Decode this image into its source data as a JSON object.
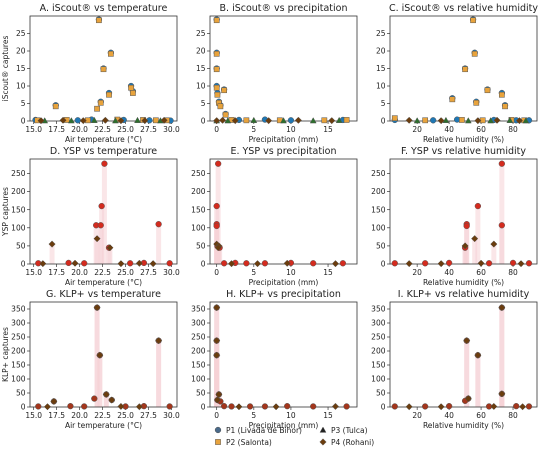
{
  "colors": {
    "P1": "#1f77b4",
    "P2": "#e8a33c",
    "P3": "#2d6f2d",
    "P4": "#6b3d0e",
    "YSP": "#d42b1e",
    "KLP": "#7a2a12",
    "shade": "#f6d2d6"
  },
  "legend": {
    "items": [
      {
        "label": "P1 (Livada de Bihor)",
        "marker": "circle",
        "color": "#4a6a8a"
      },
      {
        "label": "P2 (Salonta)",
        "marker": "square",
        "color": "#e8a33c"
      },
      {
        "label": "P3 (Tulca)",
        "marker": "triangle",
        "color": "#222222"
      },
      {
        "label": "P4 (Rohani)",
        "marker": "diamond",
        "color": "#6b3d0e"
      }
    ]
  },
  "chart_data": [
    {
      "type": "scatter",
      "title": "A. iScout® vs temperature",
      "xlabel": "Air temperature (°C)",
      "ylabel": "iScout® captures",
      "xlim": [
        14.6,
        30.6
      ],
      "ylim": [
        0,
        30
      ],
      "xticks": [
        "15.0",
        "17.5",
        "20.0",
        "22.5",
        "25.0",
        "27.5",
        "30.0"
      ],
      "xtick_values": [
        15,
        17.5,
        20,
        22.5,
        25,
        27.5,
        30
      ],
      "yticks": [
        "0",
        "5",
        "10",
        "15",
        "20",
        "25"
      ],
      "ytick_values": [
        0,
        5,
        10,
        15,
        20,
        25
      ],
      "series": [
        {
          "name": "P1 (Livada de Bihor)",
          "marker": "circle",
          "color": "#1f77b4",
          "x": [
            22.1,
            22.3,
            22.6,
            23.2,
            23.4,
            25.6,
            25.8,
            15.2,
            17.4,
            19.8,
            21.3,
            24.8,
            27.6,
            29.9
          ],
          "y": [
            29,
            5.5,
            15,
            8,
            19.5,
            10,
            8.5,
            0.3,
            4.5,
            0.2,
            0.4,
            0.3,
            0.2,
            0.1
          ]
        },
        {
          "name": "P2 (Salonta)",
          "marker": "square",
          "color": "#e8a33c",
          "x": [
            22.1,
            22.3,
            22.6,
            23.2,
            23.4,
            25.6,
            25.8,
            17.4,
            21.9,
            15.4,
            18.6,
            20.9,
            24.1,
            26.9,
            28.3,
            29.5
          ],
          "y": [
            28.8,
            5.2,
            14.8,
            7.5,
            19.2,
            9.5,
            8.0,
            4.2,
            3.5,
            0.2,
            0.3,
            0.2,
            0.4,
            0.3,
            0.2,
            0.2
          ]
        },
        {
          "name": "P3 (Tulca)",
          "marker": "triangle",
          "color": "#2d6f2d",
          "x": [
            16.2,
            19.1,
            21.6,
            23.9,
            26.3,
            28.8
          ],
          "y": [
            0.1,
            0.1,
            0.2,
            0.1,
            0.2,
            0.1
          ]
        },
        {
          "name": "P4 (Rohani)",
          "marker": "diamond",
          "color": "#6b3d0e",
          "x": [
            15.8,
            18.2,
            20.4,
            22.8,
            24.5,
            27.1,
            29.2
          ],
          "y": [
            0.1,
            0.2,
            0.1,
            0.2,
            0.1,
            0.1,
            0.2
          ]
        }
      ]
    },
    {
      "type": "scatter",
      "title": "B. iScout® vs precipitation",
      "xlabel": "Precipitation (mm)",
      "ylabel": "",
      "xlim": [
        -0.9,
        18.9
      ],
      "ylim": [
        0,
        30
      ],
      "xticks": [
        "0",
        "5",
        "10",
        "15"
      ],
      "xtick_values": [
        0,
        5,
        10,
        15
      ],
      "yticks": [
        "0",
        "5",
        "10",
        "15",
        "20",
        "25"
      ],
      "ytick_values": [
        0,
        5,
        10,
        15,
        20,
        25
      ],
      "series": [
        {
          "name": "P1 (Livada de Bihor)",
          "marker": "circle",
          "color": "#1f77b4",
          "x": [
            0,
            0,
            0,
            0,
            0.1,
            0.3,
            0.5,
            1.0,
            1.2,
            3.0,
            6.5,
            10.0,
            17.0
          ],
          "y": [
            29,
            19.5,
            15,
            10,
            8,
            5.5,
            4.5,
            9,
            2,
            0.3,
            0.4,
            0.2,
            0.3
          ]
        },
        {
          "name": "P2 (Salonta)",
          "marker": "square",
          "color": "#e8a33c",
          "x": [
            0,
            0,
            0,
            0,
            0.1,
            0.3,
            0.5,
            1.0,
            1.2,
            2.0,
            4.0,
            8.5,
            14.5,
            17.5
          ],
          "y": [
            28.8,
            19.2,
            14.8,
            9.5,
            7.5,
            5.2,
            4.2,
            8.8,
            1.8,
            0.3,
            0.2,
            0.2,
            0.2,
            0.3
          ]
        },
        {
          "name": "P3 (Tulca)",
          "marker": "triangle",
          "color": "#2d6f2d",
          "x": [
            0,
            1.5,
            5.0,
            9.0,
            13.0,
            16.5
          ],
          "y": [
            0.1,
            0.1,
            0.2,
            0.1,
            0.1,
            0.2
          ]
        },
        {
          "name": "P4 (Rohani)",
          "marker": "diamond",
          "color": "#6b3d0e",
          "x": [
            0,
            0.8,
            2.5,
            7.0,
            11.0,
            15.5
          ],
          "y": [
            0.1,
            0.2,
            0.1,
            0.1,
            0.2,
            0.1
          ]
        }
      ]
    },
    {
      "type": "scatter",
      "title": "C. iScout® vs relative humidity",
      "xlabel": "Relative humidity (%)",
      "ylabel": "",
      "xlim": [
        3,
        95
      ],
      "ylim": [
        0,
        30
      ],
      "xticks": [
        "20",
        "40",
        "60",
        "80"
      ],
      "xtick_values": [
        20,
        40,
        60,
        80
      ],
      "yticks": [
        "0",
        "5",
        "10",
        "15",
        "20",
        "25"
      ],
      "ytick_values": [
        0,
        5,
        10,
        15,
        20,
        25
      ],
      "series": [
        {
          "name": "P1 (Livada de Bihor)",
          "marker": "circle",
          "color": "#1f77b4",
          "x": [
            55,
            56,
            50,
            64,
            42,
            57,
            73,
            75,
            6,
            30,
            45,
            68,
            82,
            90
          ],
          "y": [
            29,
            19.5,
            15,
            9,
            6.5,
            5.5,
            8,
            4.5,
            0.3,
            0.2,
            0.4,
            0.3,
            0.2,
            0.2
          ]
        },
        {
          "name": "P2 (Salonta)",
          "marker": "square",
          "color": "#e8a33c",
          "x": [
            55,
            56,
            50,
            64,
            42,
            57,
            73,
            75,
            6,
            25,
            48,
            61,
            79,
            87
          ],
          "y": [
            28.8,
            19.2,
            14.8,
            8.8,
            6.2,
            5.2,
            7.5,
            4.2,
            0.8,
            0.2,
            0.3,
            0.2,
            0.3,
            0.2
          ]
        },
        {
          "name": "P3 (Tulca)",
          "marker": "triangle",
          "color": "#2d6f2d",
          "x": [
            20,
            38,
            52,
            66,
            78,
            88
          ],
          "y": [
            0.1,
            0.2,
            0.1,
            0.1,
            0.2,
            0.1
          ]
        },
        {
          "name": "P4 (Rohani)",
          "marker": "diamond",
          "color": "#6b3d0e",
          "x": [
            15,
            35,
            58,
            70,
            84
          ],
          "y": [
            0.2,
            0.1,
            0.1,
            0.2,
            0.1
          ]
        }
      ]
    },
    {
      "type": "scatter",
      "title": "D. YSP vs temperature",
      "xlabel": "Air temperature (°C)",
      "ylabel": "YSP captures",
      "xlim": [
        14.6,
        30.6
      ],
      "ylim": [
        0,
        290
      ],
      "xticks": [
        "15.0",
        "17.5",
        "20.0",
        "22.5",
        "25.0",
        "27.5",
        "30.0"
      ],
      "xtick_values": [
        15,
        17.5,
        20,
        22.5,
        25,
        27.5,
        30
      ],
      "yticks": [
        "0",
        "50",
        "100",
        "150",
        "200",
        "250"
      ],
      "ytick_values": [
        0,
        50,
        100,
        150,
        200,
        250
      ],
      "series": [
        {
          "name": "YSP",
          "marker": "circle",
          "color": "#d42b1e",
          "x": [
            22.7,
            22.4,
            21.8,
            22.3,
            28.6,
            23.2,
            15.5,
            18.8,
            20.5,
            25.5,
            27.0,
            29.8
          ],
          "y": [
            277,
            160,
            107,
            107,
            110,
            45,
            2,
            3,
            2,
            2,
            3,
            2
          ]
        },
        {
          "name": "P4 (Rohani)",
          "marker": "diamond",
          "color": "#6b3d0e",
          "x": [
            17.0,
            21.9,
            23.3,
            16.0,
            19.5,
            24.5,
            26.5,
            28.0
          ],
          "y": [
            55,
            70,
            45,
            1,
            2,
            1,
            2,
            1
          ]
        }
      ]
    },
    {
      "type": "scatter",
      "title": "E. YSP vs precipitation",
      "xlabel": "Precipitation (mm)",
      "ylabel": "",
      "xlim": [
        -0.9,
        18.9
      ],
      "ylim": [
        0,
        290
      ],
      "xticks": [
        "0",
        "5",
        "10",
        "15"
      ],
      "xtick_values": [
        0,
        5,
        10,
        15
      ],
      "yticks": [
        "0",
        "50",
        "100",
        "150",
        "200",
        "250"
      ],
      "ytick_values": [
        0,
        50,
        100,
        150,
        200,
        250
      ],
      "series": [
        {
          "name": "YSP",
          "marker": "circle",
          "color": "#d42b1e",
          "x": [
            0.2,
            0,
            0,
            0,
            0.1,
            0.4,
            1.0,
            2.5,
            4.0,
            6.5,
            10.0,
            13.0,
            17.0
          ],
          "y": [
            277,
            160,
            110,
            105,
            50,
            45,
            2,
            3,
            2,
            2,
            3,
            2,
            2
          ]
        },
        {
          "name": "P4 (Rohani)",
          "marker": "diamond",
          "color": "#6b3d0e",
          "x": [
            0,
            0.3,
            0.2,
            2.0,
            5.5,
            9.5,
            16.0
          ],
          "y": [
            55,
            50,
            45,
            1,
            1,
            2,
            1
          ]
        }
      ]
    },
    {
      "type": "scatter",
      "title": "F. YSP vs relative humidity",
      "xlabel": "Relative humidity (%)",
      "ylabel": "",
      "xlim": [
        3,
        95
      ],
      "ylim": [
        0,
        290
      ],
      "xticks": [
        "20",
        "40",
        "60",
        "80"
      ],
      "xtick_values": [
        20,
        40,
        60,
        80
      ],
      "yticks": [
        "0",
        "50",
        "100",
        "150",
        "200",
        "250"
      ],
      "ytick_values": [
        0,
        50,
        100,
        150,
        200,
        250
      ],
      "series": [
        {
          "name": "YSP",
          "marker": "circle",
          "color": "#d42b1e",
          "x": [
            73,
            58,
            51,
            51,
            73,
            50,
            6,
            25,
            40,
            65,
            80,
            90
          ],
          "y": [
            277,
            160,
            110,
            105,
            107,
            45,
            2,
            2,
            3,
            2,
            3,
            2
          ]
        },
        {
          "name": "P4 (Rohani)",
          "marker": "diamond",
          "color": "#6b3d0e",
          "x": [
            56,
            68,
            50,
            15,
            35,
            60,
            85
          ],
          "y": [
            70,
            55,
            50,
            1,
            1,
            2,
            1
          ]
        }
      ]
    },
    {
      "type": "scatter",
      "title": "G. KLP+ vs temperature",
      "xlabel": "Air temperature (°C)",
      "ylabel": "KLP+ captures",
      "xlim": [
        14.6,
        30.6
      ],
      "ylim": [
        0,
        375
      ],
      "xticks": [
        "15.0",
        "17.5",
        "20.0",
        "22.5",
        "25.0",
        "27.5",
        "30.0"
      ],
      "xtick_values": [
        15,
        17.5,
        20,
        22.5,
        25,
        27.5,
        30
      ],
      "yticks": [
        "0",
        "50",
        "100",
        "150",
        "200",
        "250",
        "300",
        "350"
      ],
      "ytick_values": [
        0,
        50,
        100,
        150,
        200,
        250,
        300,
        350
      ],
      "series": [
        {
          "name": "KLP+",
          "marker": "circle",
          "color": "#a3361c",
          "x": [
            21.9,
            22.2,
            28.6,
            22.9,
            17.2,
            23.5,
            21.6,
            15.5,
            19.0,
            20.5,
            25.0,
            27.0,
            29.8
          ],
          "y": [
            355,
            185,
            237,
            45,
            20,
            25,
            30,
            2,
            3,
            2,
            2,
            3,
            2
          ]
        },
        {
          "name": "P4 (Rohani)",
          "marker": "diamond",
          "color": "#6b3d0e",
          "x": [
            21.9,
            22.2,
            28.6,
            22.9,
            17.2,
            23.5,
            16.5,
            24.5,
            26.5
          ],
          "y": [
            355,
            185,
            237,
            45,
            20,
            25,
            1,
            2,
            1
          ]
        }
      ]
    },
    {
      "type": "scatter",
      "title": "H. KLP+ vs precipitation",
      "xlabel": "Precipitation (mm)",
      "ylabel": "",
      "xlim": [
        -0.9,
        18.9
      ],
      "ylim": [
        0,
        375
      ],
      "xticks": [
        "0",
        "5",
        "10",
        "15"
      ],
      "xtick_values": [
        0,
        5,
        10,
        15
      ],
      "yticks": [
        "0",
        "50",
        "100",
        "150",
        "200",
        "250",
        "300",
        "350"
      ],
      "ytick_values": [
        0,
        50,
        100,
        150,
        200,
        250,
        300,
        350
      ],
      "series": [
        {
          "name": "KLP+",
          "marker": "circle",
          "color": "#a3361c",
          "x": [
            0,
            0,
            0,
            0.3,
            0.1,
            0.5,
            1.0,
            2.0,
            4.5,
            6.5,
            9.5,
            13.0,
            17.5
          ],
          "y": [
            355,
            237,
            185,
            45,
            25,
            20,
            3,
            2,
            2,
            2,
            3,
            2,
            2
          ]
        },
        {
          "name": "P4 (Rohani)",
          "marker": "diamond",
          "color": "#6b3d0e",
          "x": [
            0,
            0,
            0,
            0.3,
            0.1,
            3.0,
            8.0,
            16.0
          ],
          "y": [
            355,
            237,
            185,
            45,
            25,
            1,
            1,
            2
          ]
        }
      ]
    },
    {
      "type": "scatter",
      "title": "I. KLP+ vs relative humidity",
      "xlabel": "Relative humidity (%)",
      "ylabel": "",
      "xlim": [
        3,
        95
      ],
      "ylim": [
        0,
        375
      ],
      "xticks": [
        "20",
        "40",
        "60",
        "80"
      ],
      "xtick_values": [
        20,
        40,
        60,
        80
      ],
      "yticks": [
        "0",
        "50",
        "100",
        "150",
        "200",
        "250",
        "300",
        "350"
      ],
      "ytick_values": [
        0,
        50,
        100,
        150,
        200,
        250,
        300,
        350
      ],
      "series": [
        {
          "name": "KLP+",
          "marker": "circle",
          "color": "#a3361c",
          "x": [
            73,
            51,
            58,
            73,
            52,
            50,
            6,
            25,
            40,
            65,
            82,
            90
          ],
          "y": [
            355,
            237,
            185,
            47,
            30,
            22,
            2,
            2,
            3,
            2,
            3,
            2
          ]
        },
        {
          "name": "P4 (Rohani)",
          "marker": "diamond",
          "color": "#6b3d0e",
          "x": [
            73,
            51,
            58,
            73,
            52,
            15,
            35,
            68,
            86
          ],
          "y": [
            355,
            237,
            185,
            47,
            30,
            1,
            1,
            2,
            1
          ]
        }
      ]
    }
  ]
}
